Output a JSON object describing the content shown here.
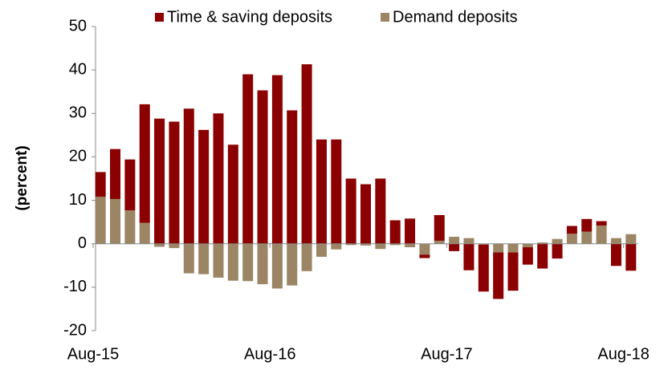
{
  "chart_data": {
    "type": "bar",
    "stacked": true,
    "y_label": "(percent)",
    "categories": [
      "Aug-15",
      null,
      null,
      null,
      null,
      null,
      null,
      null,
      null,
      null,
      null,
      null,
      "Aug-16",
      null,
      null,
      null,
      null,
      null,
      null,
      null,
      null,
      null,
      null,
      null,
      "Aug-17",
      null,
      null,
      null,
      null,
      null,
      null,
      null,
      null,
      null,
      null,
      null,
      "Aug-18"
    ],
    "series": [
      {
        "name": "Demand deposits",
        "color": "#9b8565",
        "values": [
          10.8,
          10.3,
          7.7,
          4.8,
          -0.7,
          -1.0,
          -6.8,
          -7.0,
          -7.8,
          -8.5,
          -8.6,
          -9.3,
          -10.3,
          -9.6,
          -6.3,
          -3.0,
          -1.3,
          -0.3,
          -0.4,
          -1.2,
          -0.3,
          -0.8,
          -2.5,
          0.7,
          1.6,
          1.3,
          -0.2,
          -2.0,
          -2.0,
          -0.8,
          0.3,
          1.1,
          2.3,
          2.8,
          4.2,
          1.3,
          2.2
        ]
      },
      {
        "name": "Time & saving deposits",
        "color": "#8b0000",
        "values": [
          5.7,
          11.5,
          11.7,
          27.3,
          28.8,
          28.1,
          31.1,
          26.2,
          30.0,
          22.8,
          39.0,
          35.3,
          38.8,
          30.7,
          41.3,
          24.0,
          24.0,
          15.0,
          13.7,
          15.0,
          5.4,
          5.8,
          -0.8,
          5.9,
          -1.7,
          -6.1,
          -10.8,
          -10.7,
          -8.8,
          -4.0,
          -5.7,
          -3.4,
          1.8,
          2.9,
          1.0,
          -5.1,
          -6.2
        ]
      }
    ],
    "legend_order": [
      1,
      0
    ],
    "ylim": [
      -20,
      50
    ],
    "yticks": [
      -20,
      -10,
      0,
      10,
      20,
      30,
      40,
      50
    ]
  }
}
